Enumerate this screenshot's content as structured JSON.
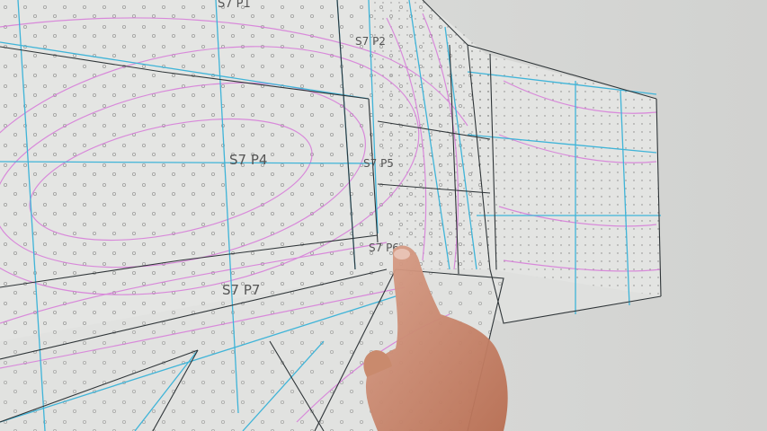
{
  "image": {
    "description_free": true,
    "panel_labels": [
      {
        "id": "s7p1",
        "text": "S7 P1"
      },
      {
        "id": "s7p2",
        "text": "S7 P2"
      },
      {
        "id": "s7p4",
        "text": "S7 P4"
      },
      {
        "id": "s7p5",
        "text": "S7 P5"
      },
      {
        "id": "s7p6",
        "text": "S7 P6"
      },
      {
        "id": "s7p7",
        "text": "S7 P7"
      }
    ],
    "colors": {
      "surface": "#e2e3e1",
      "grid_blue": "#3fb4d8",
      "contour_magenta": "#d77ad9",
      "seam_dark": "#2f3538",
      "skin": "#c9876a"
    }
  }
}
